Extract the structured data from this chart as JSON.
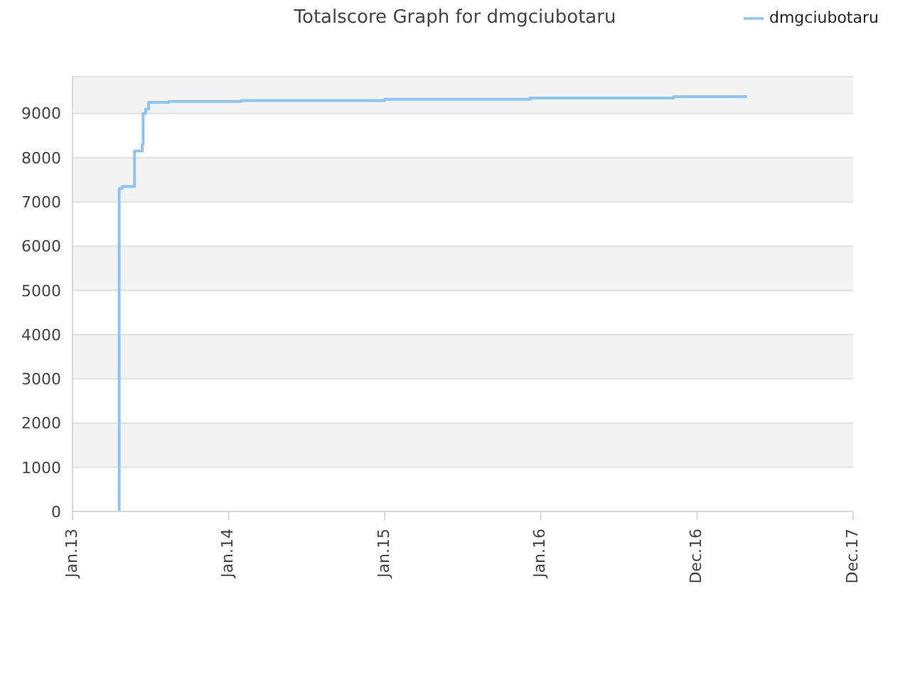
{
  "chart_data": {
    "type": "step",
    "title": "Totalscore Graph for dmgciubotaru",
    "x": [
      "2013-04-20",
      "2013-04-20",
      "2013-04-27",
      "2013-05-26",
      "2013-06-13",
      "2013-06-15",
      "2013-06-21",
      "2013-06-28",
      "2013-08-14",
      "2014-01-30",
      "2015-01-01",
      "2015-12-07",
      "2016-11-06",
      "2017-04-27"
    ],
    "series": [
      {
        "name": "dmgciubotaru",
        "color": "#90c3f5",
        "values": [
          0,
          7300,
          7350,
          8150,
          8300,
          9000,
          9100,
          9250,
          9270,
          9290,
          9320,
          9350,
          9380,
          9380
        ]
      }
    ],
    "xlim": [
      "2013-01-01",
      "2017-12-31"
    ],
    "xticks": [
      {
        "value": "2013-01-01",
        "label": "Jan.13"
      },
      {
        "value": "2014-01-01",
        "label": "Jan.14"
      },
      {
        "value": "2015-01-01",
        "label": "Jan.15"
      },
      {
        "value": "2016-01-01",
        "label": "Jan.16"
      },
      {
        "value": "2016-12-31",
        "label": "Dec.16"
      },
      {
        "value": "2017-12-31",
        "label": "Dec.17"
      }
    ],
    "ylim": [
      0,
      9830
    ],
    "yticks": [
      0,
      1000,
      2000,
      3000,
      4000,
      5000,
      6000,
      7000,
      8000,
      9000
    ],
    "grid": "y",
    "legend": "top right",
    "marker": "none"
  }
}
